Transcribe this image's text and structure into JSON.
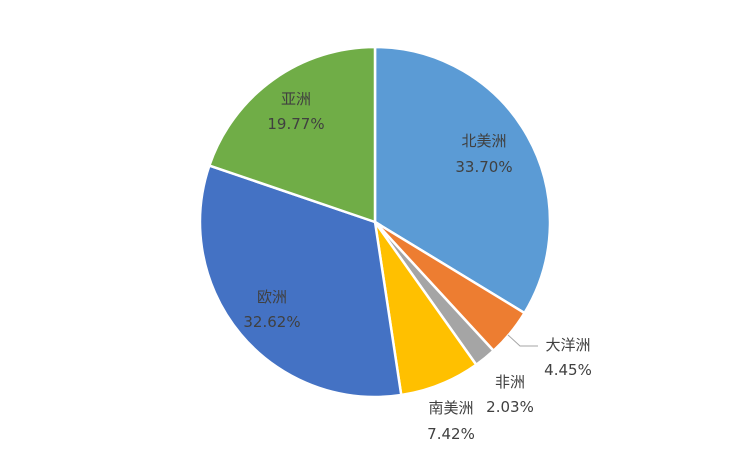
{
  "chart_data": {
    "type": "pie",
    "title": "",
    "start_angle_deg": 0,
    "direction": "clockwise",
    "legend": "none",
    "slices": [
      {
        "name": "北美洲",
        "value": 33.7,
        "label": "33.70%",
        "color": "#5B9BD5"
      },
      {
        "name": "大洋洲",
        "value": 4.45,
        "label": "4.45%",
        "color": "#ED7D31"
      },
      {
        "name": "非洲",
        "value": 2.03,
        "label": "2.03%",
        "color": "#A5A5A5"
      },
      {
        "name": "南美洲",
        "value": 7.42,
        "label": "7.42%",
        "color": "#FFC000"
      },
      {
        "name": "欧洲",
        "value": 32.62,
        "label": "32.62%",
        "color": "#4472C4"
      },
      {
        "name": "亚洲",
        "value": 19.77,
        "label": "19.77%",
        "color": "#70AD47"
      }
    ]
  }
}
